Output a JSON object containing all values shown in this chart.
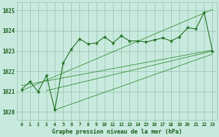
{
  "title": "Graphe pression niveau de la mer (hPa)",
  "x_labels": [
    "0",
    "1",
    "2",
    "3",
    "4",
    "5",
    "6",
    "7",
    "8",
    "9",
    "10",
    "11",
    "12",
    "13",
    "14",
    "15",
    "16",
    "17",
    "18",
    "19",
    "20",
    "21",
    "22",
    "23"
  ],
  "hours": [
    0,
    1,
    2,
    3,
    4,
    5,
    6,
    7,
    8,
    9,
    10,
    11,
    12,
    13,
    14,
    15,
    16,
    17,
    18,
    19,
    20,
    21,
    22,
    23
  ],
  "pressure": [
    1021.1,
    1021.5,
    1021.0,
    1021.8,
    1020.1,
    1022.4,
    1023.1,
    1023.6,
    1023.35,
    1023.4,
    1023.7,
    1023.4,
    1023.75,
    1023.5,
    1023.5,
    1023.45,
    1023.55,
    1023.65,
    1023.5,
    1023.7,
    1024.15,
    1024.1,
    1024.9,
    1023.0
  ],
  "line_color": "#1a6b1a",
  "bg_color": "#c8eade",
  "grid_color": "#90bea8",
  "text_color": "#1a5c1a",
  "ylim": [
    1019.6,
    1025.4
  ],
  "yticks": [
    1020,
    1021,
    1022,
    1023,
    1024,
    1025
  ],
  "trend_lines": [
    {
      "x": [
        0,
        23
      ],
      "y": [
        1021.05,
        1025.05
      ]
    },
    {
      "x": [
        0,
        23
      ],
      "y": [
        1021.3,
        1023.05
      ]
    },
    {
      "x": [
        3,
        23
      ],
      "y": [
        1021.05,
        1023.0
      ]
    },
    {
      "x": [
        4,
        23
      ],
      "y": [
        1020.1,
        1022.85
      ]
    }
  ],
  "trend_color": "#2d8b2d",
  "figwidth": 3.2,
  "figheight": 2.0,
  "dpi": 100
}
